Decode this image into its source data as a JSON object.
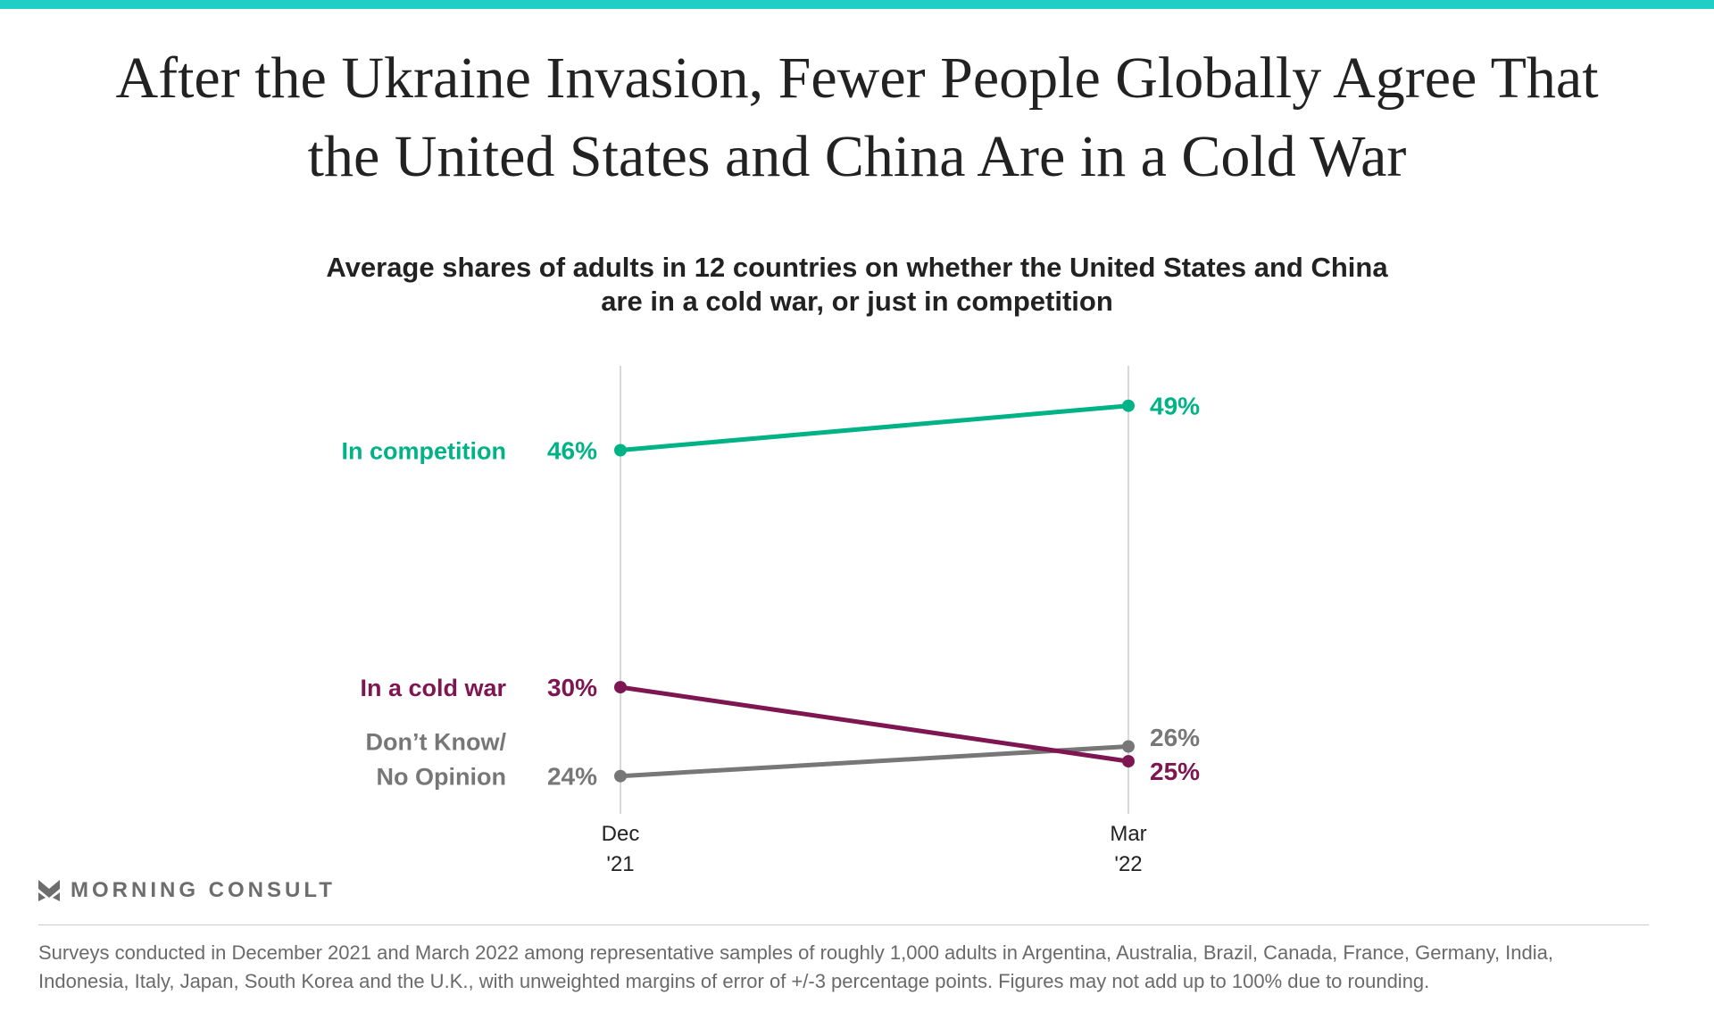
{
  "title_lines": [
    "After the Ukraine Invasion, Fewer People Globally Agree That",
    "the United States and China Are in a Cold War"
  ],
  "chart_data": {
    "type": "line",
    "title": "Average shares of adults in 12 countries on whether the United States and China are in a cold war, or just in competition",
    "subtitle_lines": [
      "Average shares of adults in 12 countries on whether the United States and China",
      "are in a cold war, or just in competition"
    ],
    "categories": [
      [
        "Dec",
        "'21"
      ],
      [
        "Mar",
        "'22"
      ]
    ],
    "series": [
      {
        "name": "In competition",
        "name_lines": [
          "In competition"
        ],
        "values": [
          46,
          49
        ],
        "labels": [
          "46%",
          "49%"
        ],
        "color": "#00b386"
      },
      {
        "name": "In a cold war",
        "name_lines": [
          "In a cold war"
        ],
        "values": [
          30,
          25
        ],
        "labels": [
          "30%",
          "25%"
        ],
        "color": "#7d1651"
      },
      {
        "name": "Don't Know/ No Opinion",
        "name_lines": [
          "Don’t Know/",
          "No Opinion"
        ],
        "values": [
          24,
          26
        ],
        "labels": [
          "24%",
          "26%"
        ],
        "color": "#777777"
      }
    ],
    "grid": "vertical lines at categories"
  },
  "brand": "MORNING CONSULT",
  "footnote": "Surveys conducted in December 2021 and March 2022 among representative samples of roughly 1,000 adults in Argentina, Australia, Brazil, Canada, France, Germany, India, Indonesia, Italy, Japan, South Korea and the U.K., with unweighted margins of error of +/-3 percentage points. Figures may not add up to 100% due to rounding.",
  "colors": {
    "accent_bar": "#1fcfc5"
  }
}
